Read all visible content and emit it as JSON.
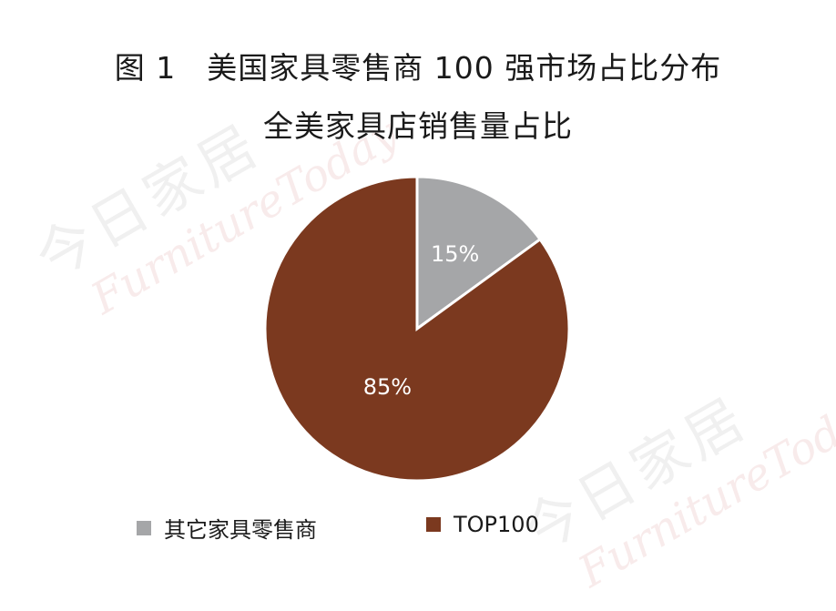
{
  "figure_title": "图 1　美国家具零售商 100 强市场占比分布",
  "watermark": {
    "cn": "今日家居",
    "en": "FurnitureToday"
  },
  "chart_data": {
    "type": "pie",
    "title": "全美家具店销售量占比",
    "slices": [
      {
        "label": "其它家具零售商",
        "value": 15,
        "display": "15%",
        "color": "#a5a6a8"
      },
      {
        "label": "TOP100",
        "value": 85,
        "display": "85%",
        "color": "#7b391f"
      }
    ],
    "start_angle_deg": 0,
    "direction": "clockwise",
    "legend_position": "bottom"
  }
}
